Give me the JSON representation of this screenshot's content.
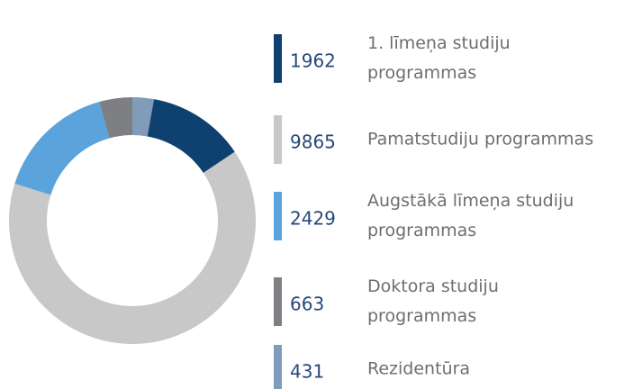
{
  "chart_data": {
    "type": "donut",
    "categories": [
      [
        "1. līmeņa studiju",
        "programmas"
      ],
      [
        "Pamatstudiju programmas"
      ],
      [
        "Augstākā līmeņa studiju",
        "programmas"
      ],
      [
        "Doktora studiju",
        "programmas"
      ],
      [
        "Rezidentūra"
      ]
    ],
    "values": [
      1962,
      9865,
      2429,
      663,
      431
    ],
    "colors": [
      "#0f4170",
      "#c8c8c8",
      "#5ba3dc",
      "#7d7f82",
      "#809cba"
    ]
  }
}
